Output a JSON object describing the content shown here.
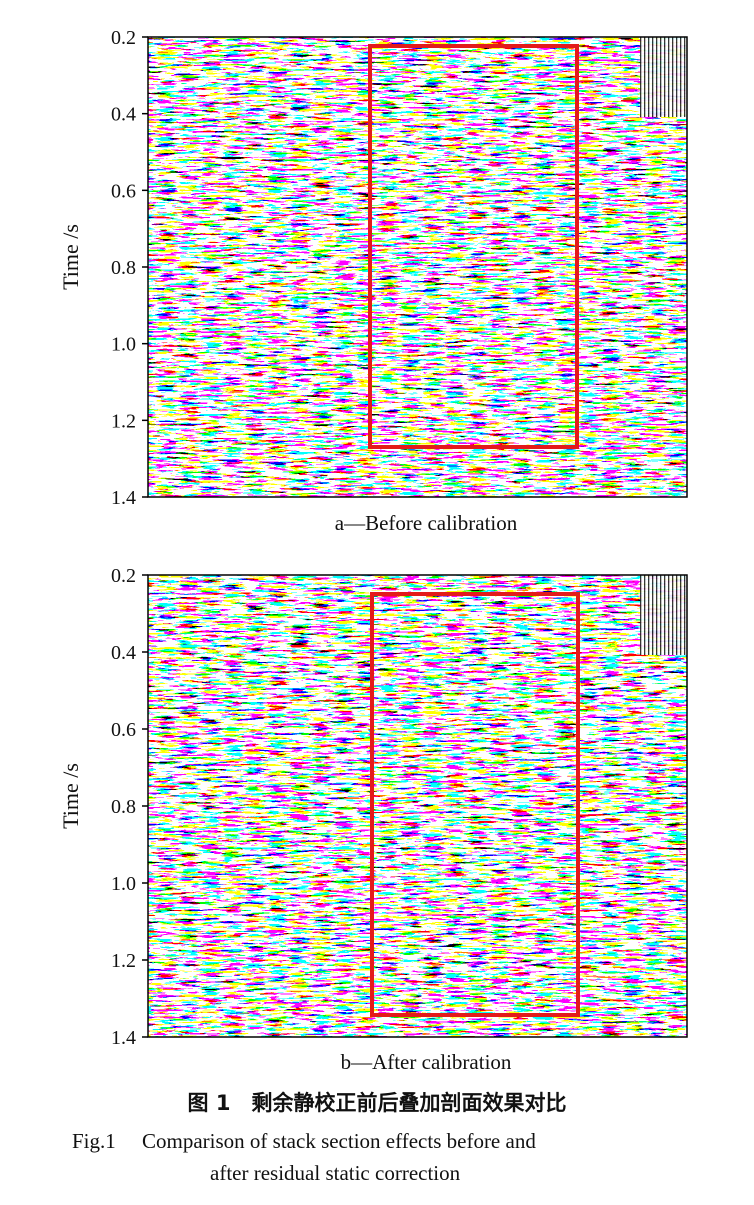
{
  "figures": [
    {
      "ylabel": "Time /s",
      "yticks": [
        "0.2",
        "0.4",
        "0.6",
        "0.8",
        "1.0",
        "1.2",
        "1.4"
      ],
      "caption": "a—Before calibration"
    },
    {
      "ylabel": "Time /s",
      "yticks": [
        "0.2",
        "0.4",
        "0.6",
        "0.8",
        "1.0",
        "1.2",
        "1.4"
      ],
      "caption": "b—After calibration"
    }
  ],
  "caption_cn": "图 1　剩余静校正前后叠加剖面效果对比",
  "caption_en": [
    "Fig.1　 Comparison of stack section effects before and",
    "after residual static correction"
  ]
}
